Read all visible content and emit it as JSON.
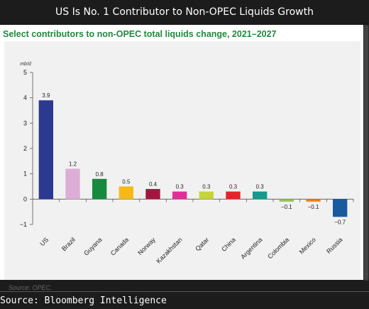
{
  "header": {
    "title": "US Is No. 1 Contributor to Non-OPEC Liquids Growth"
  },
  "footer": {
    "source": "Source: Bloomberg Intelligence"
  },
  "colors": {
    "subtitle": "#1e8a3c",
    "background": "#1c1c1c",
    "panel": "#ffffff",
    "plot_bg": "#f1f1f1"
  },
  "chart_data": {
    "type": "bar",
    "title": "Select contributors to non-OPEC total liquids change, 2021–2027",
    "ylabel": "mb/d",
    "xlabel": "",
    "source_note": "Source: OPEC.",
    "ylim": [
      -1,
      5
    ],
    "yticks": [
      "5",
      "4",
      "3",
      "2",
      "1",
      "0",
      "−1"
    ],
    "ytick_values": [
      5,
      4,
      3,
      2,
      1,
      0,
      -1
    ],
    "categories": [
      "US",
      "Brazil",
      "Guyana",
      "Canada",
      "Norway",
      "Kazakhstan",
      "Qatar",
      "China",
      "Argentina",
      "Colombia",
      "Mexico",
      "Russia"
    ],
    "values": [
      3.9,
      1.2,
      0.8,
      0.5,
      0.4,
      0.3,
      0.3,
      0.3,
      0.3,
      -0.1,
      -0.1,
      -0.7
    ],
    "value_labels": [
      "3.9",
      "1.2",
      "0.8",
      "0.5",
      "0.4",
      "0.3",
      "0.3",
      "0.3",
      "0.3",
      "−0.1",
      "−0.1",
      "−0.7"
    ],
    "bar_colors": [
      "#2b3990",
      "#dcaed5",
      "#168a3e",
      "#f6b915",
      "#a3173f",
      "#e02f97",
      "#c5d43a",
      "#e4242a",
      "#17998c",
      "#93c45e",
      "#f07f22",
      "#185aa0"
    ],
    "grid": false,
    "legend": "none"
  }
}
